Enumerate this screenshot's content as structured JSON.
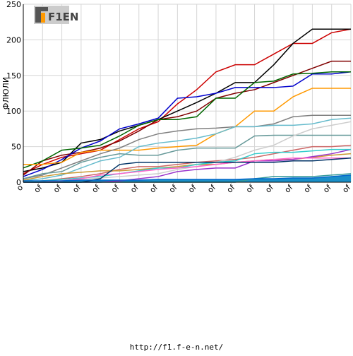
{
  "chart_data": {
    "type": "line",
    "title": "",
    "xlabel": "",
    "ylabel": "ФЛЮЛИ",
    "ylim": [
      0,
      250
    ],
    "yticks": [
      0,
      50,
      100,
      150,
      200,
      250
    ],
    "x_tick_labels": [
      "о",
      "оf",
      "оf",
      "оf",
      "оf",
      "оf",
      "оf",
      "оf",
      "оf",
      "оf",
      "оf",
      "оf",
      "оf",
      "оf",
      "оf",
      "оf",
      "оf",
      "оf"
    ],
    "x": [
      0,
      1,
      2,
      3,
      4,
      5,
      6,
      7,
      8,
      9,
      10,
      11,
      12,
      13,
      14,
      15,
      16,
      17
    ],
    "grid": true,
    "legend": "none",
    "series": [
      {
        "color": "#cc0000",
        "values": [
          12,
          25,
          35,
          40,
          45,
          60,
          75,
          85,
          110,
          130,
          155,
          165,
          165,
          180,
          195,
          195,
          210,
          215
        ]
      },
      {
        "color": "#000000",
        "values": [
          15,
          20,
          28,
          55,
          60,
          72,
          80,
          88,
          100,
          112,
          125,
          140,
          140,
          165,
          195,
          215,
          215,
          215
        ]
      },
      {
        "color": "#800000",
        "values": [
          10,
          30,
          38,
          42,
          48,
          58,
          72,
          88,
          92,
          100,
          118,
          125,
          130,
          140,
          150,
          160,
          170,
          170
        ]
      },
      {
        "color": "#0000cc",
        "values": [
          8,
          18,
          32,
          48,
          58,
          75,
          82,
          90,
          118,
          120,
          125,
          133,
          133,
          133,
          135,
          152,
          152,
          155
        ]
      },
      {
        "color": "#006600",
        "values": [
          20,
          30,
          45,
          48,
          52,
          65,
          80,
          88,
          88,
          92,
          118,
          118,
          140,
          142,
          152,
          153,
          155,
          155
        ]
      },
      {
        "color": "#ff9900",
        "values": [
          25,
          25,
          28,
          42,
          45,
          45,
          45,
          48,
          50,
          52,
          68,
          78,
          100,
          100,
          120,
          132,
          132,
          132
        ]
      },
      {
        "color": "#808080",
        "values": [
          5,
          10,
          20,
          30,
          40,
          48,
          60,
          68,
          72,
          75,
          76,
          78,
          78,
          82,
          92,
          94,
          94,
          94
        ]
      },
      {
        "color": "#66bbcc",
        "values": [
          2,
          5,
          10,
          20,
          30,
          35,
          50,
          55,
          58,
          62,
          68,
          78,
          78,
          80,
          80,
          82,
          88,
          90
        ]
      },
      {
        "color": "#669999",
        "values": [
          5,
          12,
          15,
          28,
          35,
          40,
          38,
          38,
          45,
          48,
          48,
          48,
          65,
          66,
          66,
          66,
          66,
          66
        ]
      },
      {
        "color": "#cc6666",
        "values": [
          0,
          2,
          5,
          8,
          12,
          18,
          22,
          22,
          25,
          28,
          30,
          32,
          35,
          40,
          45,
          50,
          50,
          52
        ]
      },
      {
        "color": "#cccccc",
        "values": [
          0,
          0,
          2,
          4,
          6,
          8,
          10,
          12,
          18,
          22,
          28,
          35,
          45,
          52,
          65,
          75,
          80,
          85
        ]
      },
      {
        "color": "#cc9933",
        "values": [
          3,
          8,
          12,
          14,
          16,
          16,
          18,
          20,
          22,
          25,
          25,
          28,
          30,
          32,
          32,
          35,
          38,
          40
        ]
      },
      {
        "color": "#9933cc",
        "values": [
          0,
          0,
          0,
          0,
          0,
          2,
          5,
          8,
          15,
          18,
          20,
          20,
          30,
          30,
          32,
          36,
          40,
          46
        ]
      },
      {
        "color": "#33cccc",
        "values": [
          0,
          2,
          4,
          6,
          8,
          12,
          16,
          20,
          20,
          25,
          28,
          30,
          40,
          42,
          42,
          44,
          46,
          46
        ]
      },
      {
        "color": "#ff66cc",
        "values": [
          0,
          0,
          2,
          5,
          10,
          12,
          15,
          18,
          20,
          22,
          25,
          28,
          30,
          32,
          34,
          34,
          34,
          34
        ]
      },
      {
        "color": "#003366",
        "values": [
          0,
          0,
          0,
          0,
          5,
          25,
          28,
          28,
          28,
          28,
          28,
          28,
          28,
          28,
          30,
          30,
          32,
          34
        ]
      },
      {
        "color": "#339999",
        "values": [
          0,
          0,
          0,
          0,
          0,
          0,
          0,
          0,
          0,
          0,
          0,
          0,
          5,
          8,
          8,
          8,
          10,
          12
        ]
      },
      {
        "color": "#0066cc",
        "values": [
          2,
          2,
          2,
          3,
          3,
          3,
          3,
          4,
          4,
          4,
          4,
          4,
          5,
          5,
          6,
          6,
          8,
          10
        ]
      }
    ]
  },
  "logo": {
    "text": "F1EN"
  },
  "footer": {
    "url": "http://f1.f-e-n.net/"
  }
}
